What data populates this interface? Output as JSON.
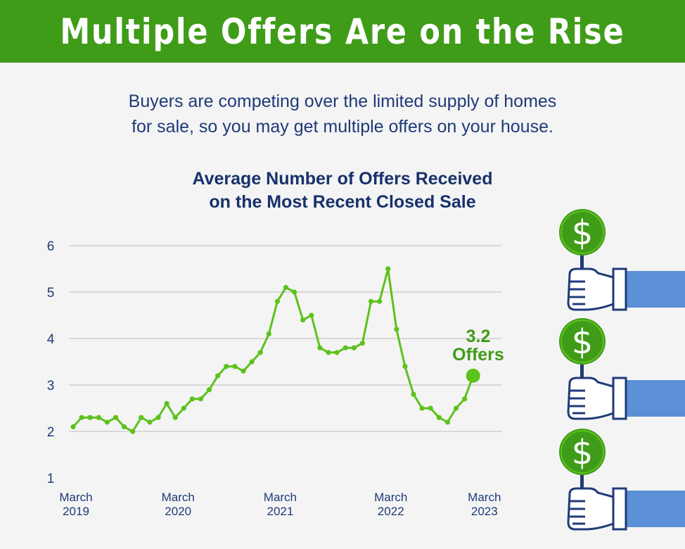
{
  "header": {
    "title": "Multiple Offers Are on the Rise"
  },
  "intro": {
    "line1": "Buyers are competing over the limited supply of homes",
    "line2": "for sale, so you may get multiple offers on your house."
  },
  "chart_data": {
    "type": "line",
    "title_line1": "Average Number of Offers Received",
    "title_line2": "on the Most Recent Closed Sale",
    "xlabel": "",
    "ylabel": "",
    "ylim": [
      1,
      6
    ],
    "yticks": [
      1,
      2,
      3,
      4,
      5,
      6
    ],
    "grid": true,
    "xtick_labels": [
      {
        "index": 0,
        "line1": "March",
        "line2": "2019"
      },
      {
        "index": 12,
        "line1": "March",
        "line2": "2020"
      },
      {
        "index": 24,
        "line1": "March",
        "line2": "2021"
      },
      {
        "index": 37,
        "line1": "March",
        "line2": "2022"
      },
      {
        "index": 48,
        "line1": "March",
        "line2": "2023"
      }
    ],
    "series": [
      {
        "color": "#5cc21c",
        "values": [
          2.1,
          2.3,
          2.3,
          2.3,
          2.2,
          2.3,
          2.1,
          2.0,
          2.3,
          2.2,
          2.3,
          2.6,
          2.3,
          2.5,
          2.7,
          2.7,
          2.9,
          3.2,
          3.4,
          3.4,
          3.3,
          3.5,
          3.7,
          4.1,
          4.8,
          5.1,
          5.0,
          4.4,
          4.5,
          3.8,
          3.7,
          3.7,
          3.8,
          3.8,
          3.9,
          4.8,
          4.8,
          5.5,
          4.2,
          3.4,
          2.8,
          2.5,
          2.5,
          2.3,
          2.2,
          2.5,
          2.7,
          3.2
        ]
      }
    ],
    "annotation": {
      "value": "3.2",
      "label": "Offers"
    }
  },
  "colors": {
    "banner": "#3f9c18",
    "line": "#5cc21c",
    "text_blue": "#1f3a78",
    "annotation": "#3f9c18",
    "sleeve": "#5b8fd6"
  },
  "illustration": {
    "icons": [
      "dollar-sign-icon",
      "hand-holding-sign-icon"
    ]
  }
}
